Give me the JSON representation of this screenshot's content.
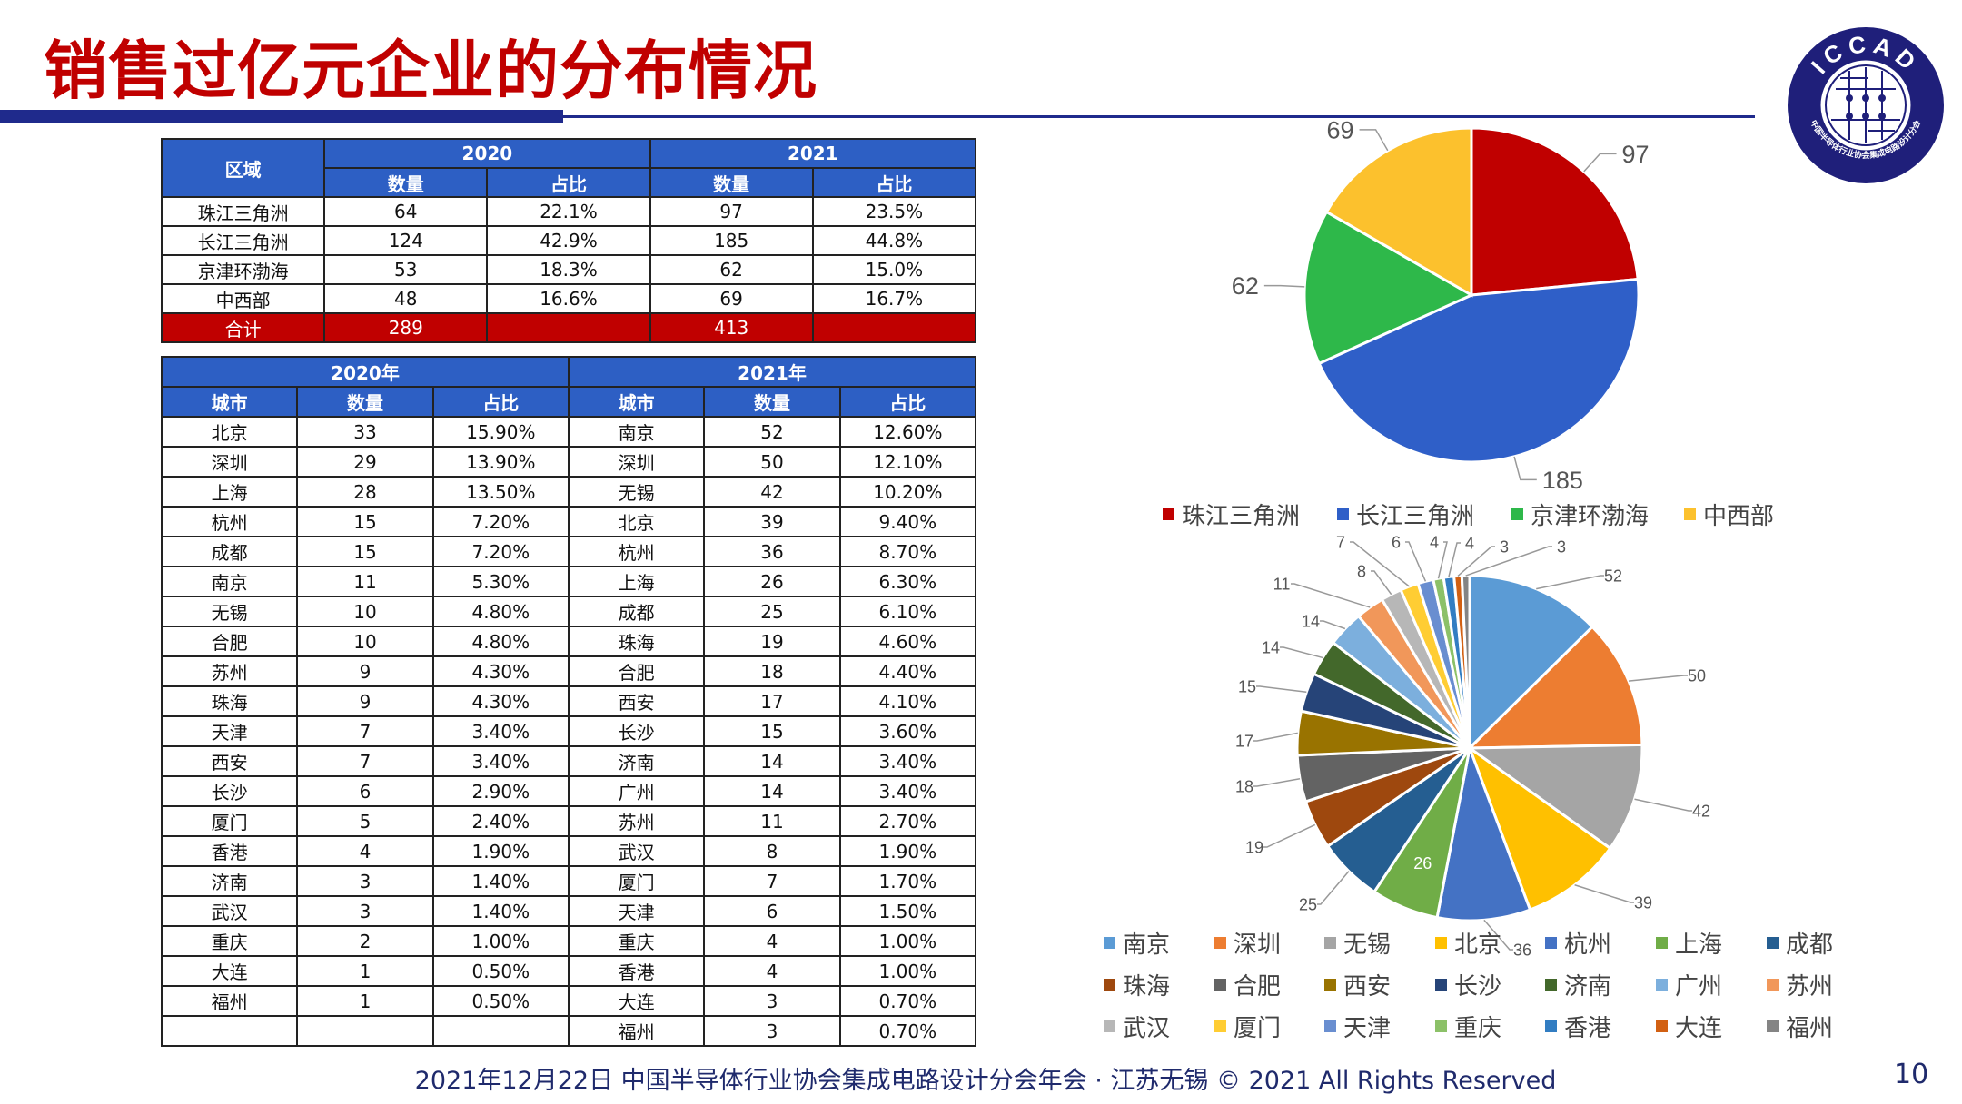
{
  "title": "销售过亿元企业的分布情况",
  "logo": {
    "text": "ICCAD",
    "subtext": "中国半导体行业协会集成电路设计分会",
    "color": "#1f1f7a"
  },
  "region_table": {
    "header_region": "区域",
    "years": [
      "2020",
      "2021"
    ],
    "sub_headers": [
      "数量",
      "占比"
    ],
    "rows": [
      [
        "珠江三角洲",
        "64",
        "22.1%",
        "97",
        "23.5%"
      ],
      [
        "长江三角洲",
        "124",
        "42.9%",
        "185",
        "44.8%"
      ],
      [
        "京津环渤海",
        "53",
        "18.3%",
        "62",
        "15.0%"
      ],
      [
        "中西部",
        "48",
        "16.6%",
        "69",
        "16.7%"
      ]
    ],
    "total": [
      "合计",
      "289",
      "",
      "413",
      ""
    ]
  },
  "city_table": {
    "years": [
      "2020年",
      "2021年"
    ],
    "headers": [
      "城市",
      "数量",
      "占比",
      "城市",
      "数量",
      "占比"
    ],
    "rows": [
      [
        "北京",
        "33",
        "15.90%",
        "南京",
        "52",
        "12.60%"
      ],
      [
        "深圳",
        "29",
        "13.90%",
        "深圳",
        "50",
        "12.10%"
      ],
      [
        "上海",
        "28",
        "13.50%",
        "无锡",
        "42",
        "10.20%"
      ],
      [
        "杭州",
        "15",
        "7.20%",
        "北京",
        "39",
        "9.40%"
      ],
      [
        "成都",
        "15",
        "7.20%",
        "杭州",
        "36",
        "8.70%"
      ],
      [
        "南京",
        "11",
        "5.30%",
        "上海",
        "26",
        "6.30%"
      ],
      [
        "无锡",
        "10",
        "4.80%",
        "成都",
        "25",
        "6.10%"
      ],
      [
        "合肥",
        "10",
        "4.80%",
        "珠海",
        "19",
        "4.60%"
      ],
      [
        "苏州",
        "9",
        "4.30%",
        "合肥",
        "18",
        "4.40%"
      ],
      [
        "珠海",
        "9",
        "4.30%",
        "西安",
        "17",
        "4.10%"
      ],
      [
        "天津",
        "7",
        "3.40%",
        "长沙",
        "15",
        "3.60%"
      ],
      [
        "西安",
        "7",
        "3.40%",
        "济南",
        "14",
        "3.40%"
      ],
      [
        "长沙",
        "6",
        "2.90%",
        "广州",
        "14",
        "3.40%"
      ],
      [
        "厦门",
        "5",
        "2.40%",
        "苏州",
        "11",
        "2.70%"
      ],
      [
        "香港",
        "4",
        "1.90%",
        "武汉",
        "8",
        "1.90%"
      ],
      [
        "济南",
        "3",
        "1.40%",
        "厦门",
        "7",
        "1.70%"
      ],
      [
        "武汉",
        "3",
        "1.40%",
        "天津",
        "6",
        "1.50%"
      ],
      [
        "重庆",
        "2",
        "1.00%",
        "重庆",
        "4",
        "1.00%"
      ],
      [
        "大连",
        "1",
        "0.50%",
        "香港",
        "4",
        "1.00%"
      ],
      [
        "福州",
        "1",
        "0.50%",
        "大连",
        "3",
        "0.70%"
      ],
      [
        "",
        "",
        "",
        "福州",
        "3",
        "0.70%"
      ]
    ]
  },
  "chart_data": [
    {
      "type": "pie",
      "categories": [
        "珠江三角洲",
        "长江三角洲",
        "京津环渤海",
        "中西部"
      ],
      "values": [
        97,
        185,
        62,
        69
      ],
      "colors": [
        "#c00000",
        "#2f5fc8",
        "#2eb84a",
        "#fcc12d"
      ],
      "legend": "bottom"
    },
    {
      "type": "pie",
      "categories": [
        "南京",
        "深圳",
        "无锡",
        "北京",
        "杭州",
        "上海",
        "成都",
        "珠海",
        "合肥",
        "西安",
        "长沙",
        "济南",
        "广州",
        "苏州",
        "武汉",
        "厦门",
        "天津",
        "重庆",
        "香港",
        "大连",
        "福州"
      ],
      "values": [
        52,
        50,
        42,
        39,
        36,
        26,
        25,
        19,
        18,
        17,
        15,
        14,
        14,
        11,
        8,
        7,
        6,
        4,
        4,
        3,
        3
      ],
      "colors": [
        "#5b9bd5",
        "#ed7d31",
        "#a5a5a5",
        "#ffc000",
        "#4472c4",
        "#70ad47",
        "#255e91",
        "#9e480e",
        "#636363",
        "#997300",
        "#264478",
        "#43682b",
        "#7cafdd",
        "#f1975a",
        "#b7b7b7",
        "#ffcd33",
        "#698ed0",
        "#8cc168",
        "#327dc2",
        "#d26012",
        "#848484"
      ],
      "legend": "bottom"
    }
  ],
  "footer": "2021年12月22日 中国半导体行业协会集成电路设计分会年会 · 江苏无锡 © 2021 All Rights Reserved",
  "page_number": "10"
}
